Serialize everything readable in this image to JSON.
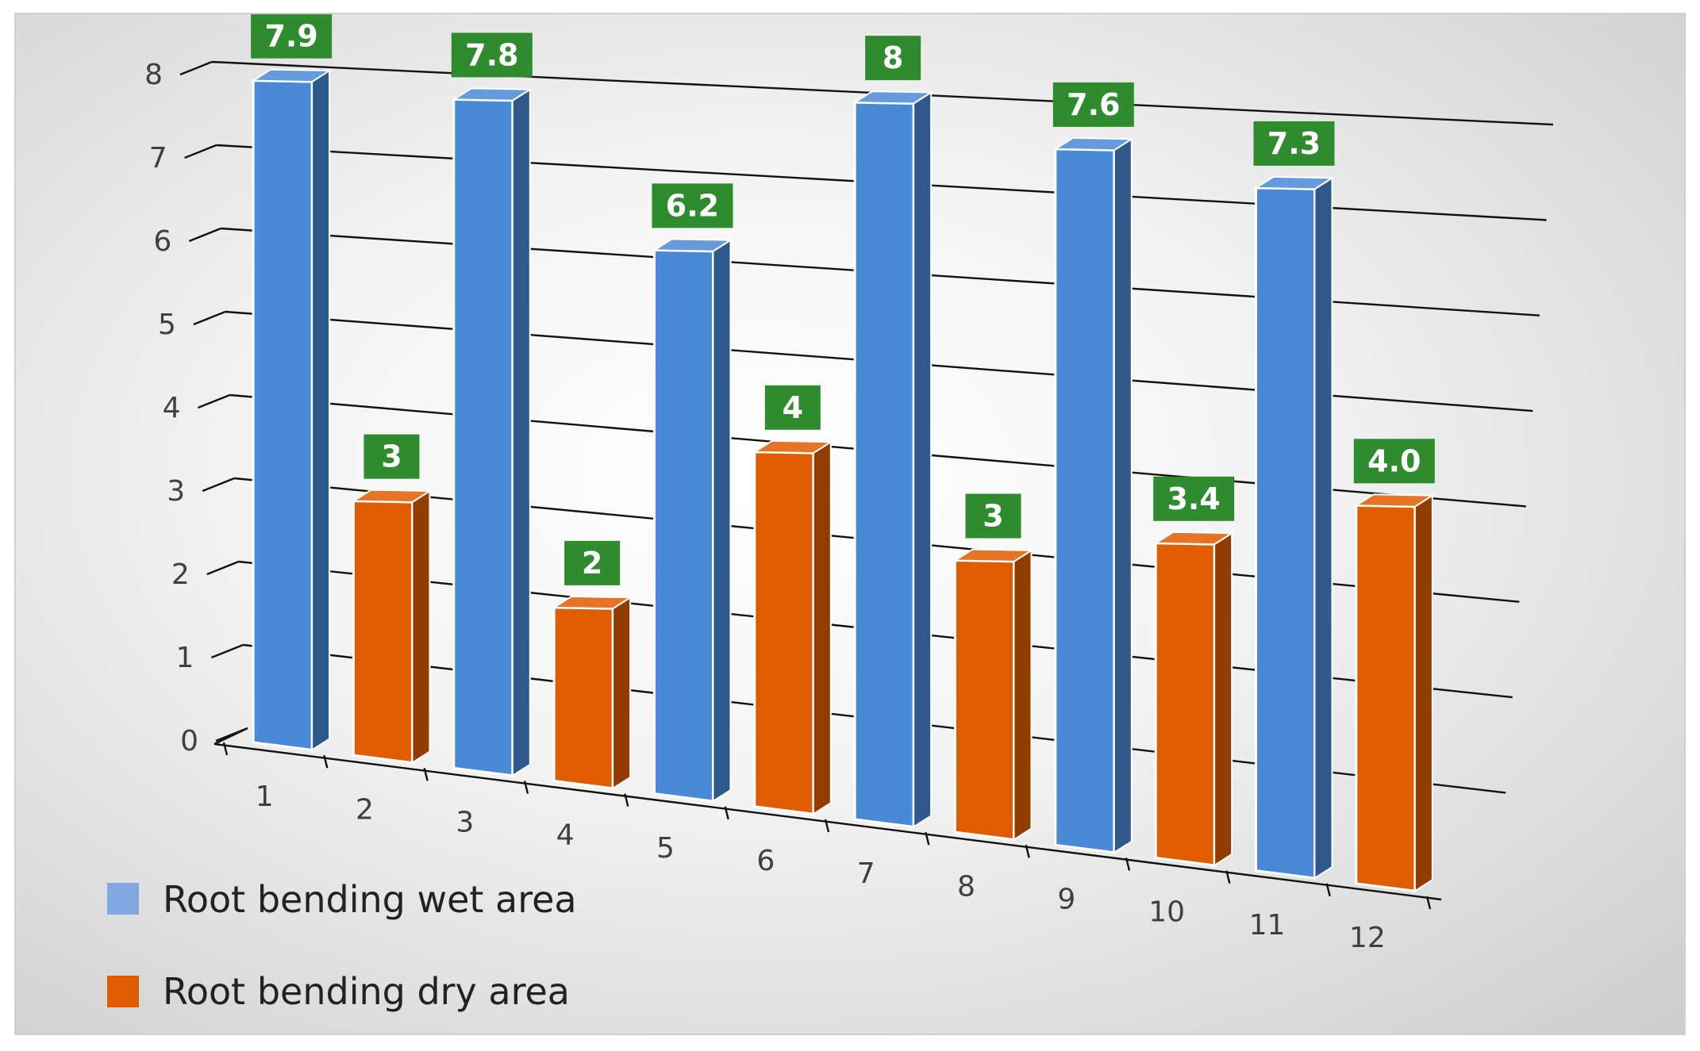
{
  "chart_data": {
    "type": "bar",
    "style": "3d-column",
    "categories": [
      "1",
      "2",
      "3",
      "4",
      "5",
      "6",
      "7",
      "8",
      "9",
      "10",
      "11",
      "12"
    ],
    "series": [
      {
        "name": "Root bending wet area",
        "color": "#4a89d6"
      },
      {
        "name": "Root bending dry area",
        "color": "#e05c00"
      }
    ],
    "values": [
      7.9,
      3,
      7.8,
      2,
      6.2,
      4,
      8,
      3,
      7.6,
      3.4,
      7.3,
      4.0
    ],
    "bar_series": [
      0,
      1,
      0,
      1,
      0,
      1,
      0,
      1,
      0,
      1,
      0,
      1
    ],
    "data_labels": [
      "7.9",
      "3",
      "7.8",
      "2",
      "6.2",
      "4",
      "8",
      "3",
      "7.6",
      "3.4",
      "7.3",
      "4.0"
    ],
    "y_ticks": [
      "0",
      "1",
      "2",
      "3",
      "4",
      "5",
      "6",
      "7",
      "8"
    ],
    "ylim": [
      0,
      8
    ],
    "grid": true,
    "legend_position": "bottom-left",
    "data_label_color": "#2e8b2e"
  }
}
